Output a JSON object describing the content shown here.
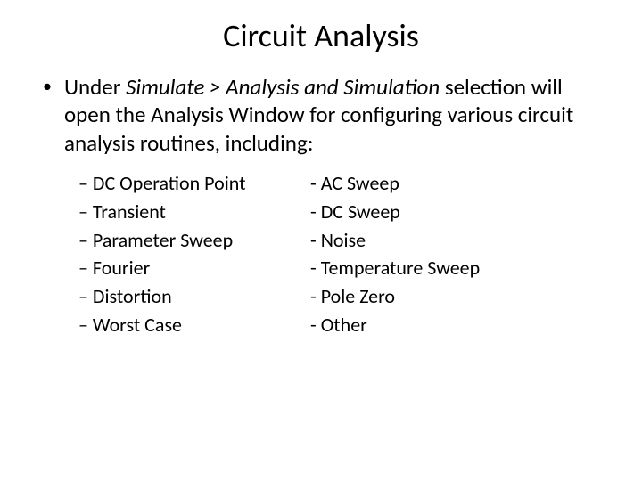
{
  "title": "Circuit Analysis",
  "mainBullet": {
    "marker": "•",
    "segments": {
      "s1": "Under ",
      "s2": "Simulate > Analysis and Simulation",
      "s3": " selection will open the Analysis Window for configuring various circuit analysis routines, including:"
    }
  },
  "leftList": {
    "items": [
      "– DC Operation Point",
      "– Transient",
      "– Parameter Sweep",
      "– Fourier",
      "– Distortion",
      "– Worst Case"
    ]
  },
  "rightList": {
    "items": [
      "- AC Sweep",
      "- DC Sweep",
      "- Noise",
      "- Temperature Sweep",
      "- Pole Zero",
      "- Other"
    ]
  },
  "styling": {
    "background_color": "#ffffff",
    "text_color": "#000000",
    "title_fontsize": 36,
    "body_fontsize": 25,
    "sublist_fontsize": 22,
    "font_family": "Calibri"
  }
}
